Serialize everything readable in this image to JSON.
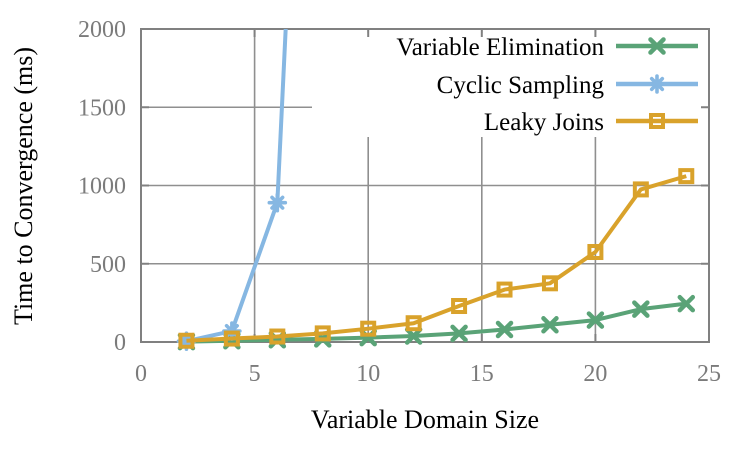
{
  "figure": {
    "background": "#ffffff",
    "border_color": "#808080",
    "grid_color": "#8f8f8f",
    "tick_label_color": "#7b7b7b",
    "text_color": "#000000"
  },
  "chart_data": {
    "type": "line",
    "title": "",
    "xlabel": "Variable Domain Size",
    "ylabel": "Time to Convergence (ms)",
    "xlim": [
      0,
      25
    ],
    "ylim": [
      0,
      2000
    ],
    "xticks": [
      0,
      5,
      10,
      15,
      20,
      25
    ],
    "yticks": [
      0,
      500,
      1000,
      1500,
      2000
    ],
    "grid": true,
    "legend_position": "top-right-inside",
    "series": [
      {
        "name": "Variable Elimination",
        "color": "#5aa377",
        "marker": "cross",
        "x": [
          2,
          4,
          6,
          8,
          10,
          12,
          14,
          16,
          18,
          20,
          22,
          24
        ],
        "y": [
          2,
          8,
          14,
          20,
          28,
          38,
          55,
          80,
          110,
          140,
          210,
          245
        ]
      },
      {
        "name": "Cyclic Sampling",
        "color": "#86b7e2",
        "marker": "asterisk",
        "x": [
          2,
          4,
          6
        ],
        "y": [
          5,
          70,
          890
        ],
        "line_exits_top_at_x": 6.4
      },
      {
        "name": "Leaky Joins",
        "color": "#d9a22b",
        "marker": "open-square",
        "x": [
          2,
          4,
          6,
          8,
          10,
          12,
          14,
          16,
          18,
          20,
          22,
          24
        ],
        "y": [
          8,
          22,
          35,
          55,
          85,
          120,
          230,
          335,
          375,
          575,
          975,
          1060
        ]
      }
    ]
  }
}
